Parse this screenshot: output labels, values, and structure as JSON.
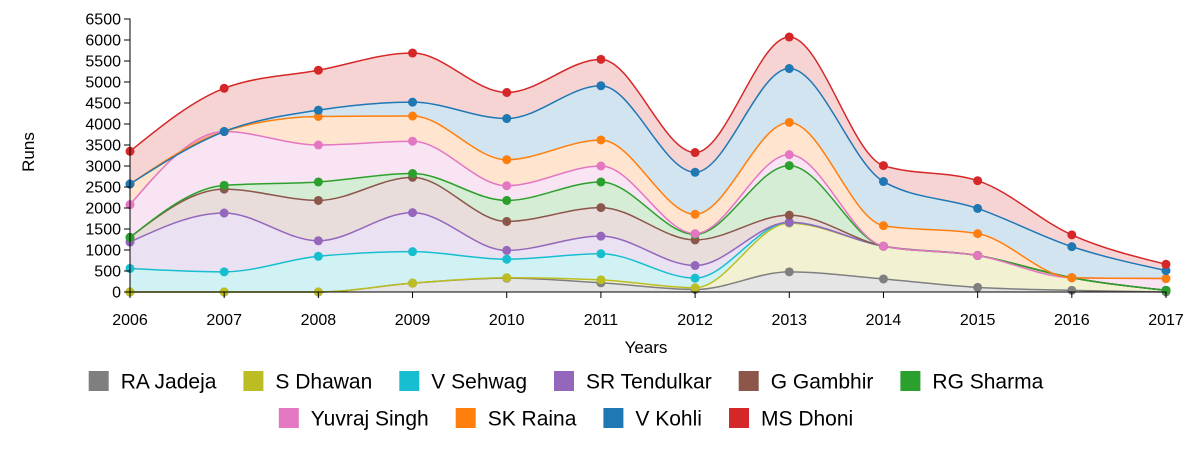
{
  "chart_data": {
    "type": "area",
    "stacked": true,
    "xlabel": "Years",
    "ylabel": "Runs",
    "x": [
      "2006",
      "2007",
      "2008",
      "2009",
      "2010",
      "2011",
      "2012",
      "2013",
      "2014",
      "2015",
      "2016",
      "2017"
    ],
    "ylim": [
      0,
      6500
    ],
    "yticks": [
      0,
      500,
      1000,
      1500,
      2000,
      2500,
      3000,
      3500,
      4000,
      4500,
      5000,
      5500,
      6000,
      6500
    ],
    "grid": false,
    "legend_position": "bottom",
    "series": [
      {
        "name": "RA Jadeja",
        "color": "#7f7f7f",
        "values": [
          0,
          0,
          0,
          210,
          330,
          220,
          60,
          480,
          310,
          110,
          40,
          0
        ]
      },
      {
        "name": "S Dhawan",
        "color": "#bcbd22",
        "values": [
          0,
          0,
          0,
          0,
          10,
          70,
          40,
          1160,
          780,
          760,
          300,
          40
        ]
      },
      {
        "name": "V Sehwag",
        "color": "#17becf",
        "values": [
          560,
          480,
          850,
          750,
          440,
          620,
          230,
          20,
          0,
          0,
          0,
          0
        ]
      },
      {
        "name": "SR Tendulkar",
        "color": "#9467bd",
        "values": [
          630,
          1400,
          370,
          930,
          210,
          420,
          300,
          0,
          0,
          0,
          0,
          0
        ]
      },
      {
        "name": "G Gambhir",
        "color": "#8c564b",
        "values": [
          110,
          570,
          960,
          840,
          690,
          680,
          610,
          170,
          0,
          0,
          0,
          0
        ]
      },
      {
        "name": "RG Sharma",
        "color": "#2ca02c",
        "values": [
          0,
          90,
          440,
          90,
          500,
          610,
          130,
          1180,
          0,
          0,
          0,
          0
        ]
      },
      {
        "name": "Yuvraj Singh",
        "color": "#e377c2",
        "values": [
          780,
          1280,
          880,
          770,
          350,
          380,
          20,
          260,
          0,
          0,
          0,
          280
        ]
      },
      {
        "name": "SK Raina",
        "color": "#ff7f0e",
        "values": [
          490,
          0,
          680,
          600,
          620,
          620,
          460,
          770,
          490,
          520,
          0,
          0
        ]
      },
      {
        "name": "V Kohli",
        "color": "#1f77b4",
        "values": [
          0,
          0,
          150,
          330,
          980,
          1290,
          1000,
          1280,
          1050,
          600,
          740,
          190
        ]
      },
      {
        "name": "MS Dhoni",
        "color": "#d62728",
        "values": [
          780,
          1030,
          950,
          1170,
          620,
          630,
          470,
          750,
          380,
          660,
          280,
          150
        ]
      }
    ]
  }
}
